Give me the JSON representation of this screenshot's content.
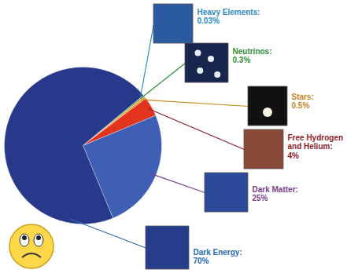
{
  "chart_data": {
    "type": "pie",
    "categories": [
      "Heavy Elements:",
      "Neutrinos:",
      "Stars:",
      "Free Hydrogen and Helium:",
      "Dark Matter:",
      "Dark Energy:"
    ],
    "values": [
      0.03,
      0.3,
      0.5,
      4,
      25,
      70
    ],
    "value_labels": [
      "0.03%",
      "0.3%",
      "0.5%",
      "4%",
      "25%",
      "70%"
    ],
    "colors": [
      "#3fa3c8",
      "#33a146",
      "#f2a23a",
      "#e2341f",
      "#3f5fb4",
      "#28398c"
    ],
    "data_labels": true
  }
}
